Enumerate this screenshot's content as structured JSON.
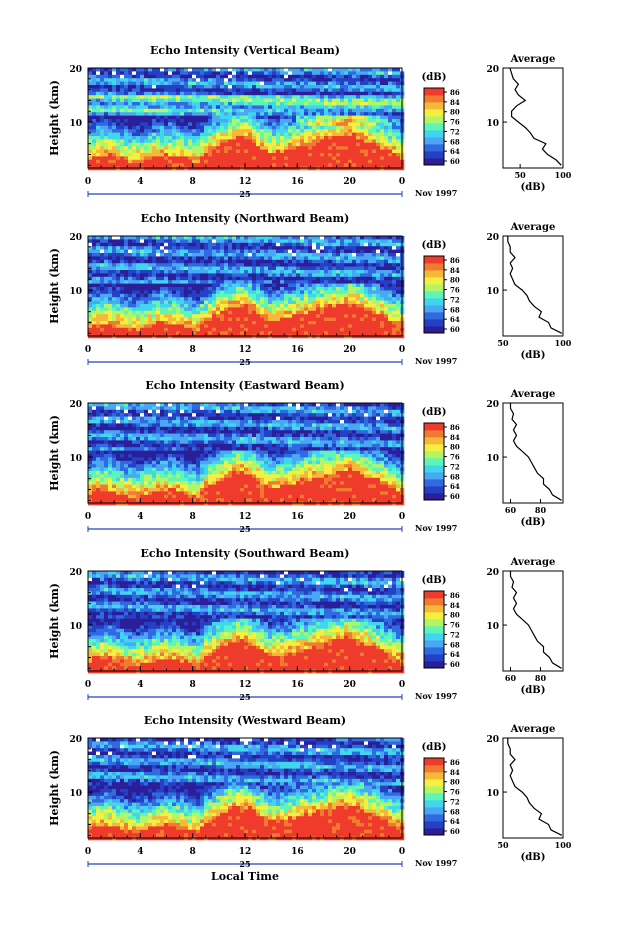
{
  "figure": {
    "xlabel": "Local Time",
    "date_label": "Nov 1997",
    "date_day": "25"
  },
  "chart_data": [
    {
      "type": "heatmap",
      "title": "Echo Intensity (Vertical Beam)",
      "xlabel": "Local Time",
      "ylabel": "Height (km)",
      "xlim": [
        0,
        24
      ],
      "xticks": [
        "0",
        "4",
        "8",
        "12",
        "16",
        "20",
        "0"
      ],
      "ylim": [
        1.5,
        20
      ],
      "yticks": [
        10,
        20
      ],
      "colorbar": {
        "label": "(dB)",
        "ticks": [
          "86",
          "84",
          "80",
          "76",
          "72",
          "68",
          "64",
          "60"
        ],
        "range": [
          60,
          88
        ]
      },
      "average_profile": {
        "title": "Average",
        "xlabel": "(dB)",
        "xlim": [
          30,
          100
        ],
        "xticks": [
          50,
          100
        ],
        "ylim": [
          1.5,
          20
        ],
        "yticks": [
          10,
          20
        ],
        "height": [
          2,
          3,
          4,
          5,
          6,
          7,
          8,
          9,
          10,
          11,
          12,
          13,
          14,
          15,
          16,
          17,
          18,
          19,
          20
        ],
        "db": [
          98,
          92,
          82,
          76,
          80,
          66,
          62,
          56,
          48,
          40,
          40,
          46,
          56,
          48,
          44,
          48,
          42,
          40,
          38
        ]
      }
    },
    {
      "type": "heatmap",
      "title": "Echo Intensity (Northward Beam)",
      "xlabel": "Local Time",
      "ylabel": "Height (km)",
      "xlim": [
        0,
        24
      ],
      "xticks": [
        "0",
        "4",
        "8",
        "12",
        "16",
        "20",
        "0"
      ],
      "ylim": [
        1.5,
        20
      ],
      "yticks": [
        10,
        20
      ],
      "colorbar": {
        "label": "(dB)",
        "ticks": [
          "86",
          "84",
          "80",
          "76",
          "72",
          "68",
          "64",
          "60"
        ],
        "range": [
          60,
          88
        ]
      },
      "average_profile": {
        "title": "Average",
        "xlabel": "(dB)",
        "xlim": [
          50,
          100
        ],
        "xticks": [
          50,
          100
        ],
        "ylim": [
          1.5,
          20
        ],
        "yticks": [
          10,
          20
        ],
        "height": [
          2,
          3,
          4,
          5,
          6,
          7,
          8,
          9,
          10,
          11,
          12,
          13,
          14,
          15,
          16,
          17,
          18,
          19,
          20
        ],
        "db": [
          99,
          90,
          88,
          80,
          82,
          76,
          72,
          70,
          66,
          60,
          58,
          56,
          58,
          56,
          60,
          56,
          56,
          54,
          54
        ]
      }
    },
    {
      "type": "heatmap",
      "title": "Echo Intensity (Eastward Beam)",
      "xlabel": "Local Time",
      "ylabel": "Height (km)",
      "xlim": [
        0,
        24
      ],
      "xticks": [
        "0",
        "4",
        "8",
        "12",
        "16",
        "20",
        "0"
      ],
      "ylim": [
        1.5,
        20
      ],
      "yticks": [
        10,
        20
      ],
      "colorbar": {
        "label": "(dB)",
        "ticks": [
          "86",
          "84",
          "80",
          "76",
          "72",
          "68",
          "64",
          "60"
        ],
        "range": [
          60,
          88
        ]
      },
      "average_profile": {
        "title": "Average",
        "xlabel": "(dB)",
        "xlim": [
          55,
          95
        ],
        "xticks": [
          60,
          80
        ],
        "ylim": [
          1.5,
          20
        ],
        "yticks": [
          10,
          20
        ],
        "height": [
          2,
          3,
          4,
          5,
          6,
          7,
          8,
          9,
          10,
          11,
          12,
          13,
          14,
          15,
          16,
          17,
          18,
          19,
          20
        ],
        "db": [
          94,
          88,
          86,
          82,
          82,
          78,
          76,
          74,
          72,
          68,
          64,
          62,
          64,
          62,
          64,
          61,
          62,
          60,
          60
        ]
      }
    },
    {
      "type": "heatmap",
      "title": "Echo Intensity (Southward Beam)",
      "xlabel": "Local Time",
      "ylabel": "Height (km)",
      "xlim": [
        0,
        24
      ],
      "xticks": [
        "0",
        "4",
        "8",
        "12",
        "16",
        "20",
        "0"
      ],
      "ylim": [
        1.5,
        20
      ],
      "yticks": [
        10,
        20
      ],
      "colorbar": {
        "label": "(dB)",
        "ticks": [
          "86",
          "84",
          "80",
          "76",
          "72",
          "68",
          "64",
          "60"
        ],
        "range": [
          60,
          88
        ]
      },
      "average_profile": {
        "title": "Average",
        "xlabel": "(dB)",
        "xlim": [
          55,
          95
        ],
        "xticks": [
          60,
          80
        ],
        "ylim": [
          1.5,
          20
        ],
        "yticks": [
          10,
          20
        ],
        "height": [
          2,
          3,
          4,
          5,
          6,
          7,
          8,
          9,
          10,
          11,
          12,
          13,
          14,
          15,
          16,
          17,
          18,
          19,
          20
        ],
        "db": [
          94,
          88,
          86,
          82,
          82,
          78,
          76,
          74,
          72,
          68,
          64,
          62,
          64,
          62,
          64,
          61,
          62,
          60,
          60
        ]
      }
    },
    {
      "type": "heatmap",
      "title": "Echo Intensity (Westward Beam)",
      "xlabel": "Local Time",
      "ylabel": "Height (km)",
      "xlim": [
        0,
        24
      ],
      "xticks": [
        "0",
        "4",
        "8",
        "12",
        "16",
        "20",
        "0"
      ],
      "ylim": [
        1.5,
        20
      ],
      "yticks": [
        10,
        20
      ],
      "colorbar": {
        "label": "(dB)",
        "ticks": [
          "86",
          "84",
          "80",
          "76",
          "72",
          "68",
          "64",
          "60"
        ],
        "range": [
          60,
          88
        ]
      },
      "average_profile": {
        "title": "Average",
        "xlabel": "(dB)",
        "xlim": [
          50,
          100
        ],
        "xticks": [
          50,
          100
        ],
        "ylim": [
          1.5,
          20
        ],
        "yticks": [
          10,
          20
        ],
        "height": [
          2,
          3,
          4,
          5,
          6,
          7,
          8,
          9,
          10,
          11,
          12,
          13,
          14,
          15,
          16,
          17,
          18,
          19,
          20
        ],
        "db": [
          99,
          90,
          88,
          80,
          82,
          76,
          72,
          70,
          66,
          60,
          58,
          56,
          58,
          56,
          60,
          56,
          56,
          54,
          54
        ]
      }
    }
  ],
  "colors": {
    "scale": [
      "#2a1f99",
      "#2440c4",
      "#2f6ae0",
      "#4aa7f3",
      "#3fd6ee",
      "#5ef5b8",
      "#b4f566",
      "#f5f040",
      "#f5b838",
      "#f07a30",
      "#ef3b2c"
    ],
    "background": "#ffffff",
    "ink": "#000000"
  }
}
